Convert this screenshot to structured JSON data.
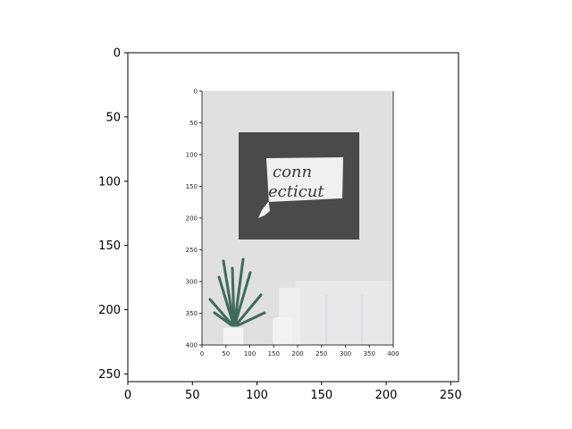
{
  "chart_data": {
    "type": "image",
    "title": "",
    "xlabel": "",
    "ylabel": "",
    "xlim": [
      0,
      256
    ],
    "ylim": [
      256,
      0
    ],
    "x_ticks": [
      "0",
      "50",
      "100",
      "150",
      "200",
      "250"
    ],
    "y_ticks": [
      "0",
      "50",
      "100",
      "150",
      "200",
      "250"
    ],
    "embedded_image": {
      "description_text": "conn ecticut",
      "x_ticks": [
        "0",
        "50",
        "100",
        "150",
        "200",
        "250",
        "300",
        "350",
        "400"
      ],
      "y_ticks": [
        "0",
        "50",
        "100",
        "150",
        "200",
        "250",
        "300",
        "350",
        "400"
      ]
    }
  },
  "art": {
    "line1": "conn",
    "line2": "ecticut"
  },
  "colors": {
    "wall": "#dfe0df",
    "board": "#4a4a4a",
    "sofa": "#e6e8ea",
    "plant": "#3f6b5c",
    "pot": "#f4f4f4"
  }
}
